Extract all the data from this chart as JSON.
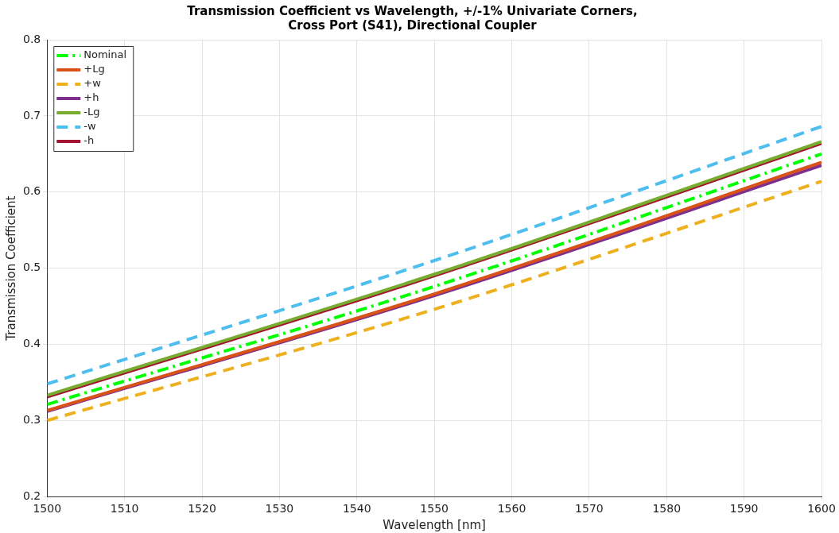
{
  "chart_data": {
    "type": "line",
    "title": "Transmission Coefficient vs Wavelength, +/-1% Univariate Corners, Cross Port (S41), Directional Coupler",
    "xlabel": "Wavelength [nm]",
    "ylabel": "Transmission Coefficient",
    "x": [
      1500,
      1550,
      1600
    ],
    "xlim": [
      1500,
      1600
    ],
    "xticks": [
      1500,
      1510,
      1520,
      1530,
      1540,
      1550,
      1560,
      1570,
      1580,
      1590,
      1600
    ],
    "ylim": [
      0.2,
      0.8
    ],
    "yticks": [
      0.2,
      0.3,
      0.4,
      0.5,
      0.6,
      0.7,
      0.8
    ],
    "grid": true,
    "legend": "top left",
    "marker": "none",
    "series": [
      {
        "name": "Nominal",
        "color": "#00ff00",
        "line_style": "dashdot",
        "values": [
          0.321,
          0.476,
          0.65
        ]
      },
      {
        "name": "+Lg",
        "color": "#d95319",
        "line_style": "solid",
        "values": [
          0.313,
          0.466,
          0.639
        ]
      },
      {
        "name": "+w",
        "color": "#edb120",
        "line_style": "dashed",
        "values": [
          0.3,
          0.446,
          0.614
        ]
      },
      {
        "name": "+h",
        "color": "#7e2f8e",
        "line_style": "solid",
        "values": [
          0.312,
          0.464,
          0.635
        ]
      },
      {
        "name": "-Lg",
        "color": "#77ac30",
        "line_style": "solid",
        "values": [
          0.333,
          0.492,
          0.666
        ]
      },
      {
        "name": "-w",
        "color": "#4dbeee",
        "line_style": "dashed",
        "values": [
          0.348,
          0.51,
          0.686
        ]
      },
      {
        "name": "-h",
        "color": "#a2142f",
        "line_style": "solid",
        "values": [
          0.331,
          0.49,
          0.664
        ]
      }
    ]
  }
}
